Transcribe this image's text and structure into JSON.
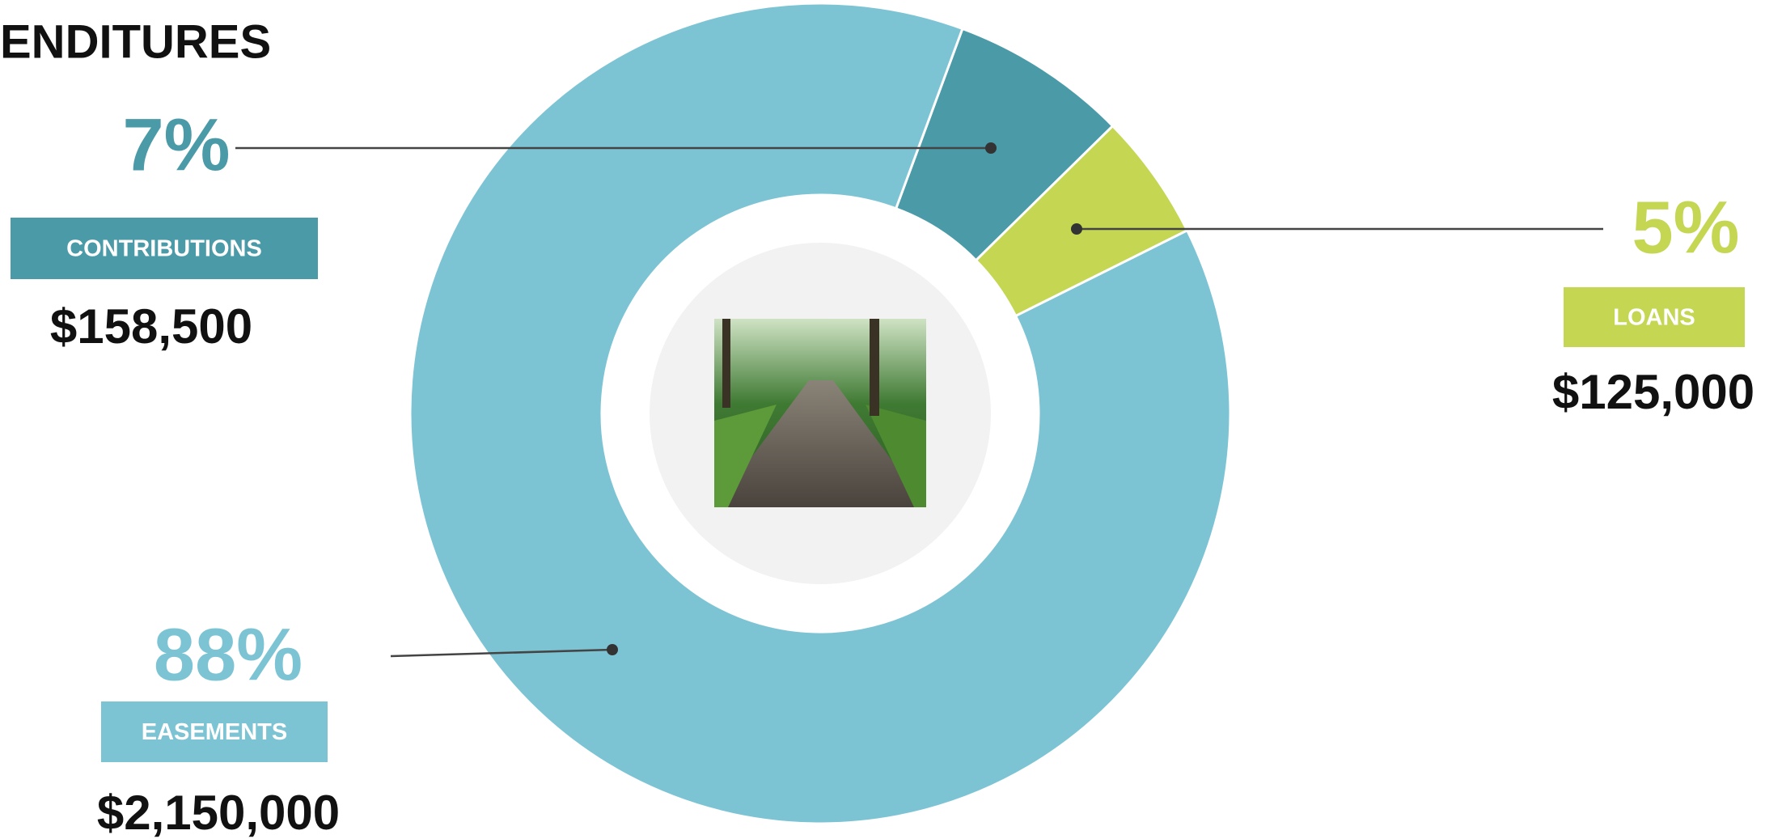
{
  "chart_data": {
    "type": "donut",
    "title": "ENDITURES",
    "categories": [
      "CONTRIBUTIONS",
      "LOANS",
      "EASEMENTS"
    ],
    "values": [
      7,
      5,
      88
    ],
    "value_labels": [
      "7%",
      "5%",
      "88%"
    ],
    "amounts": [
      "$158,500",
      "$125,000",
      "$2,150,000"
    ],
    "colors": [
      "#4a9aa8",
      "#c5d653",
      "#7cc4d4"
    ]
  }
}
